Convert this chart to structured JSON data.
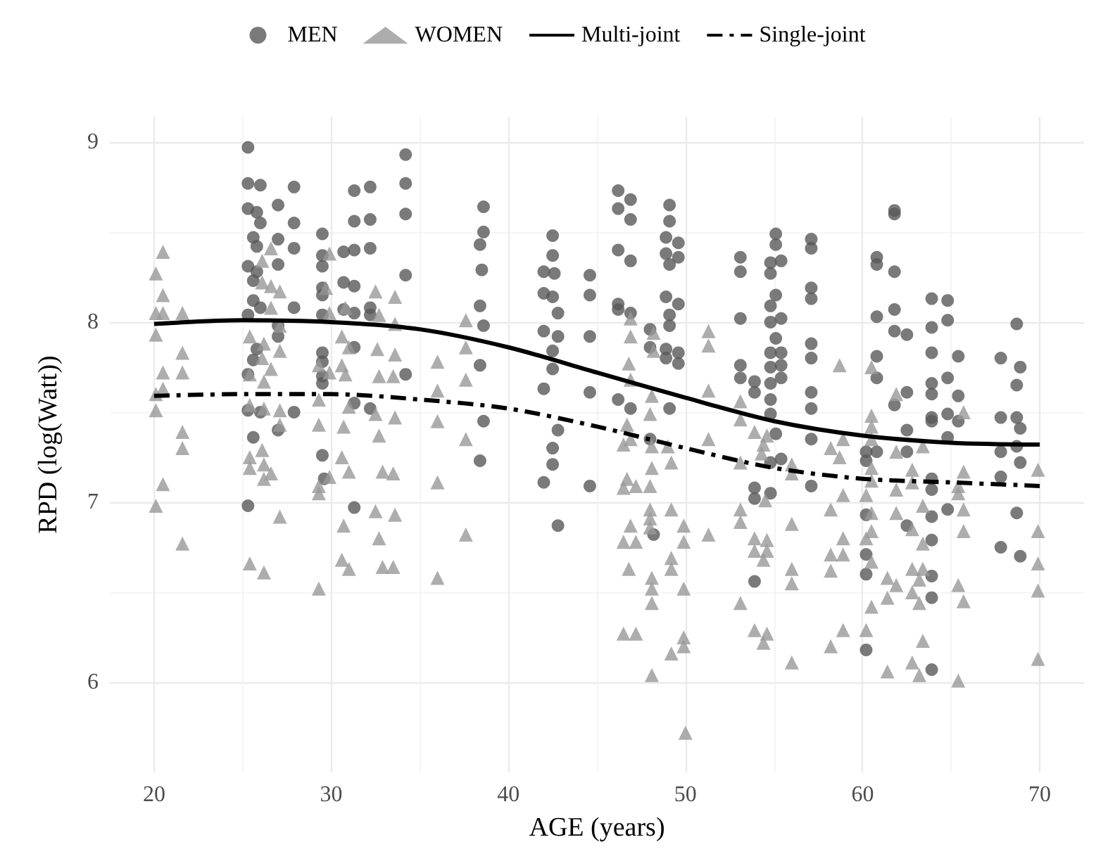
{
  "chart_data": {
    "type": "scatter",
    "xlabel": "AGE (years)",
    "ylabel": "RPD (log(Watt))",
    "xlim": [
      17.5,
      72.5
    ],
    "xticks": [
      20,
      30,
      40,
      50,
      60,
      70
    ],
    "ylim": [
      5.5,
      9.14
    ],
    "yticks": [
      6,
      7,
      8,
      9
    ],
    "grid": true,
    "legend": "top",
    "series": [
      {
        "name": "MEN",
        "color": "#595959",
        "marker": "circle",
        "x": [
          25.3,
          25.3,
          26.0,
          27.9,
          25.3,
          25.8,
          27.0,
          27.9,
          26.0,
          25.6,
          25.8,
          27.0,
          27.9,
          25.3,
          25.8,
          27.0,
          25.6,
          25.6,
          26.0,
          27.9,
          25.3,
          27.0,
          27.0,
          25.6,
          25.8,
          25.3,
          25.3,
          26.0,
          27.9,
          27.0,
          25.6,
          25.3,
          29.5,
          29.5,
          29.5,
          29.5,
          29.5,
          29.5,
          29.5,
          29.5,
          29.5,
          29.5,
          29.5,
          29.6,
          31.3,
          32.2,
          31.3,
          32.2,
          30.7,
          31.3,
          32.2,
          30.7,
          31.3,
          30.7,
          31.3,
          32.2,
          32.2,
          31.3,
          31.3,
          32.2,
          31.3,
          34.2,
          34.2,
          34.2,
          34.2,
          34.2,
          38.6,
          38.6,
          38.4,
          38.5,
          38.4,
          38.6,
          38.4,
          38.6,
          38.4,
          42.5,
          42.5,
          42.0,
          42.6,
          42.0,
          42.5,
          42.8,
          42.0,
          42.8,
          42.5,
          42.5,
          42.0,
          42.8,
          42.5,
          42.5,
          42.0,
          42.8,
          44.6,
          44.6,
          44.6,
          44.6,
          44.6,
          46.2,
          46.9,
          46.2,
          46.9,
          46.2,
          46.9,
          46.2,
          46.2,
          46.9,
          46.2,
          46.9,
          49.1,
          49.1,
          48.9,
          49.6,
          48.9,
          49.6,
          49.1,
          48.9,
          49.6,
          49.1,
          49.1,
          48.0,
          48.0,
          48.9,
          48.9,
          49.6,
          49.6,
          49.1,
          48.0,
          48.2,
          53.1,
          53.1,
          53.1,
          53.1,
          53.1,
          53.9,
          53.9,
          53.9,
          53.9,
          53.9,
          55.1,
          55.1,
          54.8,
          55.4,
          54.8,
          55.1,
          54.8,
          54.8,
          55.4,
          55.1,
          54.8,
          55.4,
          54.8,
          55.4,
          54.8,
          55.4,
          54.8,
          54.8,
          55.1,
          55.4,
          54.8,
          54.8,
          57.1,
          57.1,
          57.1,
          57.1,
          57.1,
          57.1,
          57.1,
          57.1,
          57.1,
          57.1,
          60.8,
          60.8,
          60.8,
          60.8,
          60.8,
          60.2,
          60.2,
          60.8,
          60.2,
          60.2,
          60.2,
          60.2,
          61.8,
          61.8,
          61.8,
          61.8,
          61.8,
          62.5,
          62.5,
          61.8,
          62.5,
          62.5,
          62.5,
          63.9,
          64.8,
          63.9,
          64.8,
          63.9,
          65.4,
          63.9,
          63.9,
          64.8,
          65.4,
          63.9,
          63.9,
          64.8,
          65.4,
          64.8,
          63.9,
          63.9,
          64.8,
          63.9,
          63.9,
          63.9,
          63.9,
          63.9,
          67.8,
          68.7,
          68.9,
          68.7,
          67.8,
          68.7,
          68.9,
          67.8,
          68.7,
          68.9,
          67.8,
          68.7,
          67.8,
          68.9
        ],
        "values": [
          8.97,
          8.77,
          8.76,
          8.75,
          8.63,
          8.61,
          8.65,
          8.55,
          8.55,
          8.47,
          8.42,
          8.46,
          8.41,
          8.31,
          8.28,
          8.32,
          8.23,
          8.12,
          8.08,
          8.08,
          8.04,
          7.98,
          7.92,
          7.79,
          7.85,
          7.71,
          7.51,
          7.5,
          7.5,
          7.4,
          7.36,
          6.98,
          8.49,
          8.37,
          8.31,
          8.19,
          8.15,
          8.04,
          7.83,
          7.78,
          7.7,
          7.66,
          7.26,
          7.13,
          8.73,
          8.75,
          8.56,
          8.57,
          8.39,
          8.4,
          8.41,
          8.22,
          8.2,
          8.07,
          8.05,
          8.08,
          8.04,
          7.86,
          7.55,
          7.52,
          6.97,
          8.93,
          8.77,
          8.6,
          8.26,
          7.71,
          8.64,
          8.5,
          8.43,
          8.29,
          8.09,
          7.98,
          7.76,
          7.45,
          7.23,
          8.48,
          8.37,
          8.28,
          8.27,
          8.16,
          8.14,
          8.05,
          7.95,
          7.92,
          7.84,
          7.74,
          7.63,
          7.4,
          7.3,
          7.21,
          7.11,
          6.87,
          8.26,
          8.15,
          7.92,
          7.61,
          7.09,
          8.73,
          8.68,
          8.63,
          8.57,
          8.4,
          8.34,
          8.1,
          8.07,
          8.05,
          7.57,
          7.52,
          8.65,
          8.56,
          8.47,
          8.44,
          8.38,
          8.36,
          8.32,
          8.14,
          8.1,
          8.04,
          7.98,
          7.96,
          7.86,
          7.85,
          7.8,
          7.83,
          7.77,
          7.52,
          7.35,
          6.82,
          8.36,
          8.28,
          8.02,
          7.76,
          7.69,
          7.67,
          7.61,
          7.08,
          7.02,
          6.56,
          8.49,
          8.43,
          8.33,
          8.34,
          8.27,
          8.15,
          8.09,
          8.0,
          8.02,
          7.91,
          7.83,
          7.83,
          7.75,
          7.76,
          7.66,
          7.69,
          7.57,
          7.49,
          7.38,
          7.24,
          7.22,
          7.05,
          8.46,
          8.41,
          8.19,
          8.13,
          7.88,
          7.8,
          7.61,
          7.52,
          7.35,
          7.09,
          8.36,
          8.32,
          8.03,
          7.81,
          7.69,
          7.28,
          7.23,
          7.28,
          6.93,
          6.71,
          6.6,
          6.18,
          8.62,
          8.6,
          8.28,
          8.07,
          7.95,
          7.93,
          7.61,
          7.54,
          7.4,
          7.28,
          6.87,
          8.13,
          8.12,
          7.97,
          8.01,
          7.83,
          7.81,
          7.66,
          7.6,
          7.69,
          7.59,
          7.47,
          7.45,
          7.49,
          7.45,
          7.36,
          7.13,
          7.07,
          6.96,
          6.92,
          6.79,
          6.59,
          6.47,
          6.07,
          7.8,
          7.99,
          7.75,
          7.65,
          7.47,
          7.47,
          7.41,
          7.28,
          7.31,
          7.22,
          7.14,
          6.94,
          6.75,
          6.7
        ]
      },
      {
        "name": "WOMEN",
        "color": "#999999",
        "marker": "triangle",
        "x": [
          20.5,
          20.1,
          20.5,
          20.1,
          20.5,
          21.6,
          20.1,
          21.6,
          20.5,
          21.6,
          20.5,
          20.1,
          20.1,
          21.6,
          21.6,
          20.5,
          20.1,
          21.6,
          26.6,
          26.1,
          26.1,
          26.6,
          27.1,
          26.6,
          25.4,
          26.2,
          27.1,
          27.1,
          26.1,
          25.4,
          26.6,
          26.2,
          25.4,
          26.2,
          27.1,
          27.1,
          26.1,
          25.4,
          25.4,
          26.2,
          26.6,
          26.2,
          27.1,
          25.4,
          26.2,
          29.9,
          29.7,
          29.9,
          29.9,
          29.3,
          29.3,
          29.3,
          29.9,
          29.3,
          29.3,
          29.3,
          32.5,
          33.6,
          30.8,
          32.7,
          33.6,
          30.6,
          31.0,
          32.6,
          33.6,
          30.6,
          30.8,
          32.7,
          33.5,
          31.0,
          32.5,
          33.6,
          30.7,
          32.7,
          30.6,
          31.0,
          32.9,
          33.5,
          32.5,
          33.6,
          30.7,
          32.7,
          30.6,
          31.0,
          32.9,
          33.5,
          36.0,
          36.0,
          36.0,
          36.0,
          36.0,
          37.6,
          37.6,
          37.6,
          37.6,
          37.6,
          46.9,
          46.9,
          46.8,
          46.9,
          48.2,
          48.2,
          48.1,
          48.0,
          46.7,
          46.9,
          46.5,
          48.1,
          49.0,
          48.1,
          49.2,
          46.7,
          46.5,
          47.2,
          48.0,
          48.0,
          49.2,
          48.0,
          46.9,
          46.5,
          47.2,
          49.9,
          49.9,
          48.0,
          49.2,
          49.2,
          46.8,
          48.1,
          48.1,
          49.9,
          48.1,
          46.5,
          47.2,
          49.9,
          49.9,
          49.2,
          48.1,
          50.0,
          51.3,
          51.3,
          51.3,
          51.3,
          51.3,
          53.1,
          53.9,
          53.1,
          54.6,
          54.4,
          54.3,
          53.1,
          56.0,
          56.0,
          54.5,
          53.1,
          53.1,
          56.0,
          53.9,
          54.6,
          53.9,
          54.6,
          54.4,
          56.0,
          56.0,
          53.1,
          53.9,
          54.6,
          54.4,
          56.0,
          58.7,
          58.9,
          58.2,
          58.7,
          58.9,
          58.2,
          58.9,
          58.2,
          58.9,
          58.2,
          58.9,
          58.2,
          60.5,
          60.5,
          60.5,
          60.5,
          60.5,
          60.5,
          60.2,
          60.5,
          60.5,
          60.2,
          60.5,
          61.4,
          61.4,
          60.5,
          60.2,
          61.4,
          61.9,
          61.9,
          61.9,
          61.9,
          61.9,
          62.8,
          62.8,
          63.4,
          63.4,
          62.8,
          63.4,
          62.8,
          63.4,
          63.2,
          62.8,
          63.2,
          63.4,
          62.8,
          63.2,
          65.7,
          65.7,
          65.4,
          65.4,
          65.7,
          65.7,
          65.4,
          65.7,
          65.4,
          69.9,
          69.9,
          69.9,
          69.9,
          69.9
        ],
        "values": [
          8.39,
          8.27,
          8.15,
          8.05,
          8.05,
          8.05,
          7.93,
          7.83,
          7.72,
          7.72,
          7.63,
          7.6,
          7.51,
          7.39,
          7.3,
          7.1,
          6.98,
          6.77,
          8.41,
          8.34,
          8.22,
          8.2,
          8.17,
          8.08,
          7.92,
          7.88,
          7.98,
          7.84,
          7.8,
          7.71,
          7.74,
          7.67,
          7.54,
          7.52,
          7.51,
          7.43,
          7.29,
          7.25,
          7.19,
          7.21,
          7.16,
          7.13,
          6.92,
          6.66,
          6.61,
          8.38,
          8.19,
          8.05,
          7.72,
          7.76,
          7.57,
          7.43,
          7.14,
          7.09,
          7.05,
          6.52,
          8.17,
          8.14,
          8.08,
          8.04,
          7.99,
          7.92,
          7.86,
          7.85,
          7.82,
          7.76,
          7.71,
          7.7,
          7.7,
          7.53,
          7.49,
          7.47,
          7.42,
          7.37,
          7.25,
          7.17,
          7.17,
          7.16,
          6.95,
          6.93,
          6.87,
          6.8,
          6.68,
          6.63,
          6.64,
          6.64,
          7.78,
          7.62,
          7.45,
          7.11,
          6.58,
          8.01,
          7.86,
          7.68,
          7.35,
          6.82,
          8.02,
          7.92,
          7.77,
          7.68,
          7.94,
          7.84,
          7.59,
          7.49,
          7.43,
          7.35,
          7.32,
          7.31,
          7.31,
          7.19,
          7.22,
          7.13,
          7.08,
          7.09,
          7.09,
          6.96,
          6.96,
          6.91,
          6.87,
          6.78,
          6.78,
          6.87,
          6.78,
          6.86,
          6.69,
          6.63,
          6.63,
          6.58,
          6.52,
          6.52,
          6.44,
          6.27,
          6.27,
          6.25,
          6.2,
          6.16,
          6.04,
          5.72,
          7.95,
          7.87,
          7.62,
          7.35,
          6.82,
          7.56,
          7.39,
          7.46,
          7.37,
          7.32,
          7.27,
          7.22,
          7.21,
          7.16,
          7.01,
          6.96,
          6.89,
          6.88,
          6.8,
          6.79,
          6.73,
          6.73,
          6.68,
          6.63,
          6.55,
          6.44,
          6.29,
          6.27,
          6.22,
          6.11,
          7.76,
          7.35,
          7.3,
          7.25,
          7.04,
          6.96,
          6.8,
          6.71,
          6.71,
          6.62,
          6.29,
          6.2,
          7.75,
          7.48,
          7.42,
          7.35,
          7.19,
          7.12,
          7.04,
          6.94,
          6.84,
          6.8,
          6.67,
          6.58,
          6.47,
          6.42,
          6.29,
          6.06,
          7.6,
          7.28,
          7.07,
          6.94,
          6.54,
          7.18,
          7.11,
          7.31,
          6.98,
          6.85,
          6.77,
          6.63,
          6.63,
          6.57,
          6.5,
          6.44,
          6.23,
          6.11,
          6.04,
          7.5,
          7.17,
          7.09,
          7.05,
          6.96,
          6.84,
          6.54,
          6.45,
          6.01,
          7.18,
          6.84,
          6.66,
          6.51,
          6.13
        ]
      },
      {
        "name": "Multi-joint",
        "type": "line",
        "color": "#000000",
        "marker": "none",
        "line_style": "solid",
        "x": [
          20,
          25,
          30,
          35,
          40,
          45,
          50,
          55,
          60,
          65,
          70
        ],
        "values": [
          7.99,
          8.01,
          8.0,
          7.96,
          7.86,
          7.72,
          7.58,
          7.45,
          7.37,
          7.33,
          7.32
        ]
      },
      {
        "name": "Single-joint",
        "type": "line",
        "color": "#000000",
        "marker": "none",
        "line_style": "dashed",
        "x": [
          20,
          25,
          30,
          35,
          40,
          45,
          50,
          55,
          60,
          65,
          70
        ],
        "values": [
          7.59,
          7.6,
          7.6,
          7.57,
          7.52,
          7.42,
          7.3,
          7.19,
          7.13,
          7.11,
          7.09
        ]
      }
    ]
  }
}
